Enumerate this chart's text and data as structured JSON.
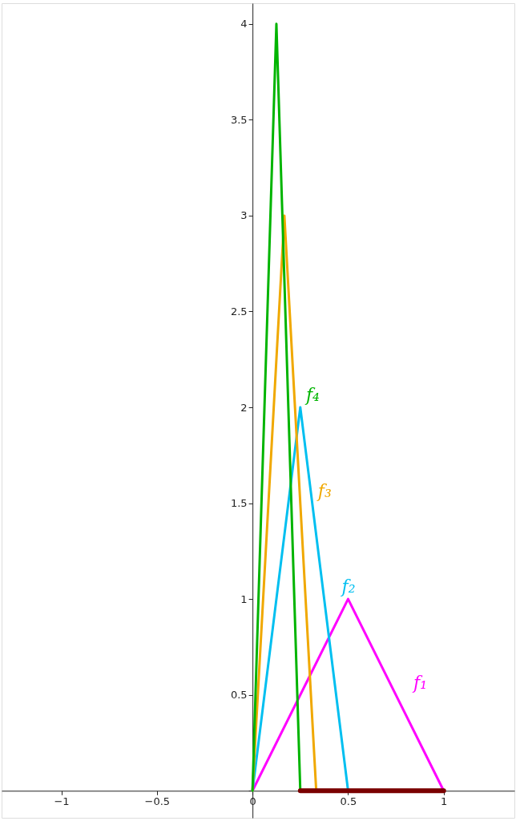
{
  "chart_data": {
    "type": "line",
    "xlim": [
      -1.3125,
      1.37
    ],
    "ylim": [
      -0.141,
      4.108
    ],
    "xticks": [
      -1,
      -0.5,
      0,
      0.5,
      1
    ],
    "yticks": [
      {
        "value": 0,
        "label": null
      },
      0.5,
      1,
      1.5,
      2,
      2.5,
      3,
      3.5,
      4
    ],
    "grid": false,
    "marker": "none",
    "line_style": "solid",
    "series": [
      {
        "name": "f₁",
        "color": "#ff00ff",
        "x": [
          0,
          0.5,
          1
        ],
        "values": [
          0,
          1,
          0
        ]
      },
      {
        "name": "f₂",
        "color": "#00bff0",
        "x": [
          0,
          0.25,
          0.5
        ],
        "values": [
          0,
          2,
          0
        ]
      },
      {
        "name": "f₃",
        "color": "#f0a800",
        "x": [
          0,
          0.1667,
          0.3333
        ],
        "values": [
          0,
          3,
          0
        ]
      },
      {
        "name": "f₄",
        "color": "#00b400",
        "x": [
          0,
          0.125,
          0.25
        ],
        "values": [
          0,
          4,
          0
        ]
      },
      {
        "color": "#7a0000",
        "x": [
          0.25,
          1
        ],
        "values": [
          0,
          0
        ]
      }
    ]
  }
}
